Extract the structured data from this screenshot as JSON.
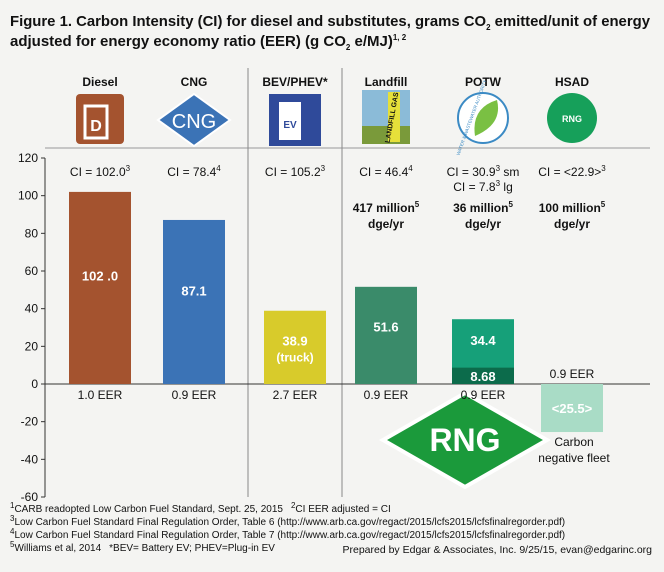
{
  "chart_data": {
    "type": "bar",
    "title": [
      [
        "Figure 1. Carbon Intensity (CI) for diesel and substitutes, grams CO",
        "2",
        " emitted/unit of energy"
      ],
      [
        "adjusted for energy economy ratio (EER) (g CO",
        "2",
        " e/MJ)",
        "1, 2"
      ]
    ],
    "categories": [
      "Diesel",
      "CNG",
      "BEV/PHEV*",
      "Landfill",
      "POTW",
      "HSAD"
    ],
    "icon_texts": [
      "D",
      "CNG",
      "EV",
      "LANDFILL GAS",
      "WATER & WASTEWATER AUTHORITY",
      "RNG"
    ],
    "ci_lines": [
      [
        [
          "CI = 102.0",
          "3"
        ]
      ],
      [
        [
          "CI = 78.4",
          "4"
        ]
      ],
      [
        [
          "CI = 105.2",
          "3"
        ]
      ],
      [
        [
          "CI = 46.4",
          "4"
        ]
      ],
      [
        [
          "CI = 30.9",
          "3",
          " sm"
        ],
        [
          "CI = 7.8",
          "3",
          " lg"
        ]
      ],
      [
        [
          "CI = <22.9>",
          "3"
        ]
      ]
    ],
    "production": [
      null,
      null,
      null,
      [
        [
          "417 million",
          "5"
        ],
        [
          "dge/yr"
        ]
      ],
      [
        [
          "36 million",
          "5"
        ],
        [
          "dge/yr"
        ]
      ],
      [
        [
          "100 million",
          "5"
        ],
        [
          "dge/yr"
        ]
      ]
    ],
    "values": [
      102.0,
      87.1,
      38.9,
      51.6,
      34.4,
      -25.5
    ],
    "value_labels": [
      "102 .0",
      "87.1",
      "38.9",
      "51.6",
      "34.4",
      "<25.5>"
    ],
    "overlay_values": [
      null,
      null,
      null,
      null,
      8.68,
      null
    ],
    "colors": [
      "#a4532f",
      "#3b73b6",
      "#d8cb2b",
      "#3a8b6a",
      "#16a079",
      "#a9dcc6"
    ],
    "overlay_color": "#0c6b4b",
    "eer_labels": [
      "1.0 EER",
      "0.9 EER",
      "2.7 EER",
      "0.9 EER",
      "0.9 EER",
      "0.9 EER"
    ],
    "annotations": {
      "truck": "(truck)",
      "rng": "RNG",
      "carbon_negative": [
        "Carbon",
        "negative fleet"
      ]
    },
    "ylim": [
      -60,
      120
    ],
    "yticks": [
      -60,
      -40,
      -20,
      0,
      20,
      40,
      60,
      80,
      100,
      120
    ],
    "grid": false,
    "footnotes": [
      {
        "mark": "1",
        "text": "CARB readopted Low Carbon Fuel Standard, Sept. 25, 2015"
      },
      {
        "mark": "2",
        "text": "CI EER adjusted = CI"
      },
      {
        "mark": "3",
        "text": "Low Carbon Fuel Standard Final Regulation Order, Table 6 (http://www.arb.ca.gov/regact/2015/lcfs2015/lcfsfinalregorder.pdf)"
      },
      {
        "mark": "4",
        "text": "Low Carbon Fuel Standard Final Regulation Order, Table 7 (http://www.arb.ca.gov/regact/2015/lcfs2015/lcfsfinalregorder.pdf)"
      },
      {
        "mark": "5",
        "text": "Williams et al, 2014"
      },
      {
        "text": "*BEV= Battery EV; PHEV=Plug-in EV"
      }
    ],
    "credit": "Prepared by Edgar & Associates, Inc. 9/25/15, evan@edgarinc.org"
  }
}
